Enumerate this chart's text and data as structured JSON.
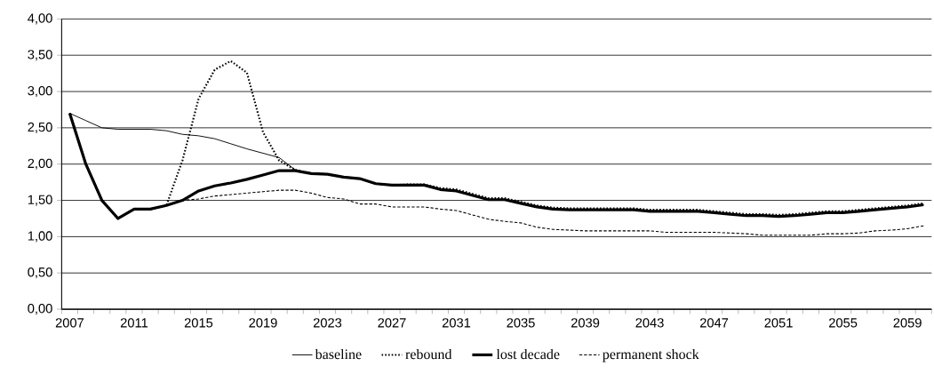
{
  "chart_data": {
    "type": "line",
    "categories": [
      "2007",
      null,
      null,
      null,
      "2011",
      null,
      null,
      null,
      "2015",
      null,
      null,
      null,
      "2019",
      null,
      null,
      null,
      "2023",
      null,
      null,
      null,
      "2027",
      null,
      null,
      null,
      "2031",
      null,
      null,
      null,
      "2035",
      null,
      null,
      null,
      "2039",
      null,
      null,
      null,
      "2043",
      null,
      null,
      null,
      "2047",
      null,
      null,
      null,
      "2051",
      null,
      null,
      null,
      "2055",
      null,
      null,
      null,
      "2059",
      null
    ],
    "series": [
      {
        "name": "baseline",
        "color": "#000000",
        "line_style": "solid",
        "values": [
          2.7,
          2.6,
          2.5,
          2.48,
          2.48,
          2.48,
          2.46,
          2.41,
          2.39,
          2.35,
          2.28,
          2.21,
          2.15,
          2.09,
          1.92,
          1.87,
          1.86,
          1.82,
          1.8,
          1.73,
          1.71,
          1.71,
          1.71,
          1.65,
          1.63,
          1.57,
          1.51,
          1.51,
          1.46,
          1.41,
          1.38,
          1.37,
          1.37,
          1.37,
          1.37,
          1.37,
          1.35,
          1.35,
          1.35,
          1.35,
          1.33,
          1.31,
          1.29,
          1.29,
          1.28,
          1.29,
          1.31,
          1.33,
          1.33,
          1.35,
          1.37,
          1.39,
          1.41,
          1.44
        ]
      },
      {
        "name": "rebound",
        "color": "#000000",
        "line_style": "dotted",
        "values": [
          2.7,
          2.0,
          1.5,
          1.25,
          1.38,
          1.38,
          1.43,
          2.05,
          2.9,
          3.3,
          3.42,
          3.26,
          2.44,
          2.05,
          1.92,
          1.87,
          1.86,
          1.82,
          1.8,
          1.73,
          1.71,
          1.72,
          1.72,
          1.67,
          1.65,
          1.59,
          1.53,
          1.53,
          1.48,
          1.43,
          1.4,
          1.39,
          1.39,
          1.39,
          1.39,
          1.39,
          1.37,
          1.37,
          1.37,
          1.37,
          1.35,
          1.33,
          1.31,
          1.31,
          1.3,
          1.31,
          1.33,
          1.35,
          1.35,
          1.37,
          1.39,
          1.41,
          1.43,
          1.46
        ]
      },
      {
        "name": "lost decade",
        "color": "#000000",
        "line_style": "solid",
        "values": [
          2.7,
          2.0,
          1.5,
          1.25,
          1.38,
          1.38,
          1.43,
          1.5,
          1.63,
          1.7,
          1.74,
          1.79,
          1.85,
          1.91,
          1.91,
          1.87,
          1.86,
          1.82,
          1.8,
          1.73,
          1.71,
          1.71,
          1.71,
          1.65,
          1.63,
          1.57,
          1.51,
          1.51,
          1.46,
          1.41,
          1.38,
          1.37,
          1.37,
          1.37,
          1.37,
          1.37,
          1.35,
          1.35,
          1.35,
          1.35,
          1.33,
          1.31,
          1.29,
          1.29,
          1.28,
          1.29,
          1.31,
          1.33,
          1.33,
          1.35,
          1.37,
          1.39,
          1.41,
          1.44
        ]
      },
      {
        "name": "permanent shock",
        "color": "#000000",
        "line_style": "dashed",
        "values": [
          2.7,
          2.0,
          1.5,
          1.25,
          1.38,
          1.38,
          1.43,
          1.5,
          1.52,
          1.56,
          1.58,
          1.6,
          1.62,
          1.64,
          1.64,
          1.6,
          1.54,
          1.52,
          1.45,
          1.45,
          1.41,
          1.41,
          1.41,
          1.38,
          1.36,
          1.3,
          1.24,
          1.21,
          1.19,
          1.13,
          1.1,
          1.09,
          1.08,
          1.08,
          1.08,
          1.08,
          1.08,
          1.06,
          1.06,
          1.06,
          1.06,
          1.05,
          1.04,
          1.02,
          1.02,
          1.02,
          1.02,
          1.04,
          1.04,
          1.05,
          1.08,
          1.09,
          1.11,
          1.15
        ]
      }
    ],
    "ylim": [
      0,
      4
    ],
    "yticks": [
      {
        "value": 0,
        "label": "0,00"
      },
      {
        "value": 0.5,
        "label": "0,50"
      },
      {
        "value": 1,
        "label": "1,00"
      },
      {
        "value": 1.5,
        "label": "1,50"
      },
      {
        "value": 2,
        "label": "2,00"
      },
      {
        "value": 2.5,
        "label": "2,50"
      },
      {
        "value": 3,
        "label": "3,00"
      },
      {
        "value": 3.5,
        "label": "3,50"
      },
      {
        "value": 4,
        "label": "4,00"
      }
    ],
    "grid": "y",
    "legend": "bottom"
  }
}
